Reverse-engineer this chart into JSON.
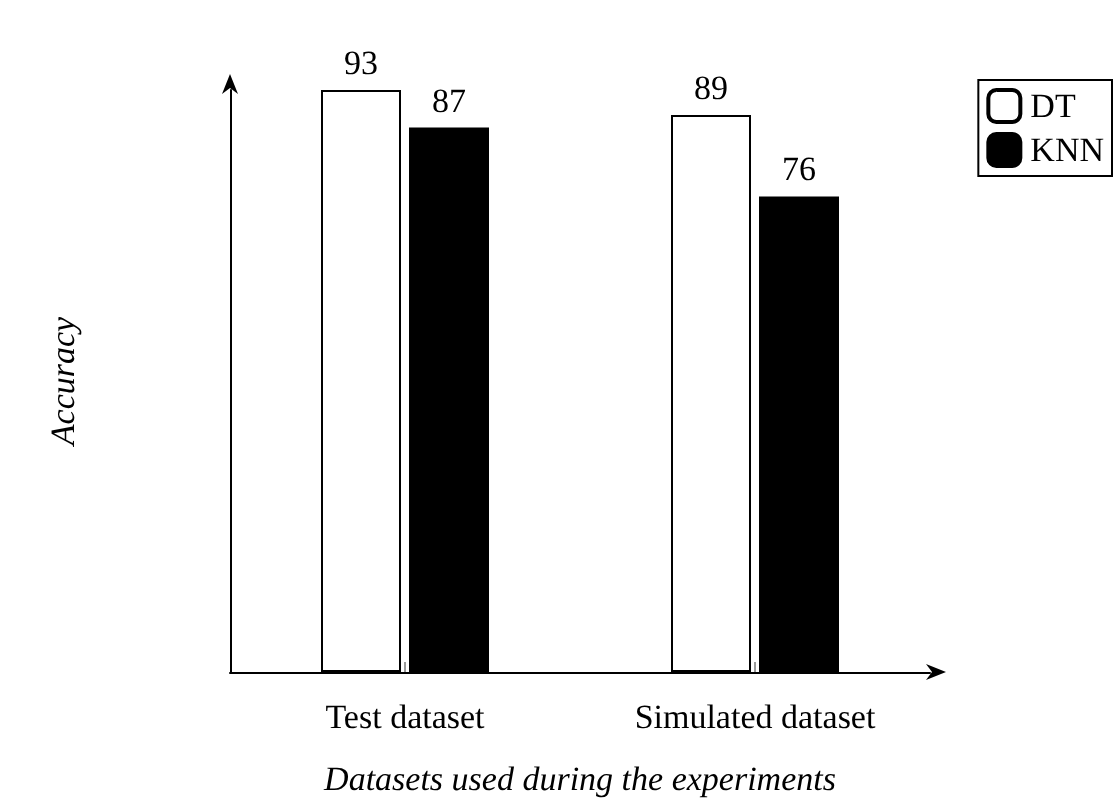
{
  "chart_data": {
    "type": "bar",
    "xlabel": "Datasets used during the experiments",
    "ylabel": "Accuracy",
    "categories": [
      "Test dataset",
      "Simulated dataset"
    ],
    "series": [
      {
        "name": "DT",
        "color": "#ffffff",
        "values": [
          93,
          89
        ]
      },
      {
        "name": "KNN",
        "color": "#000000",
        "values": [
          87,
          76
        ]
      }
    ],
    "data_labels": true,
    "legend": "top right",
    "grid": false
  }
}
